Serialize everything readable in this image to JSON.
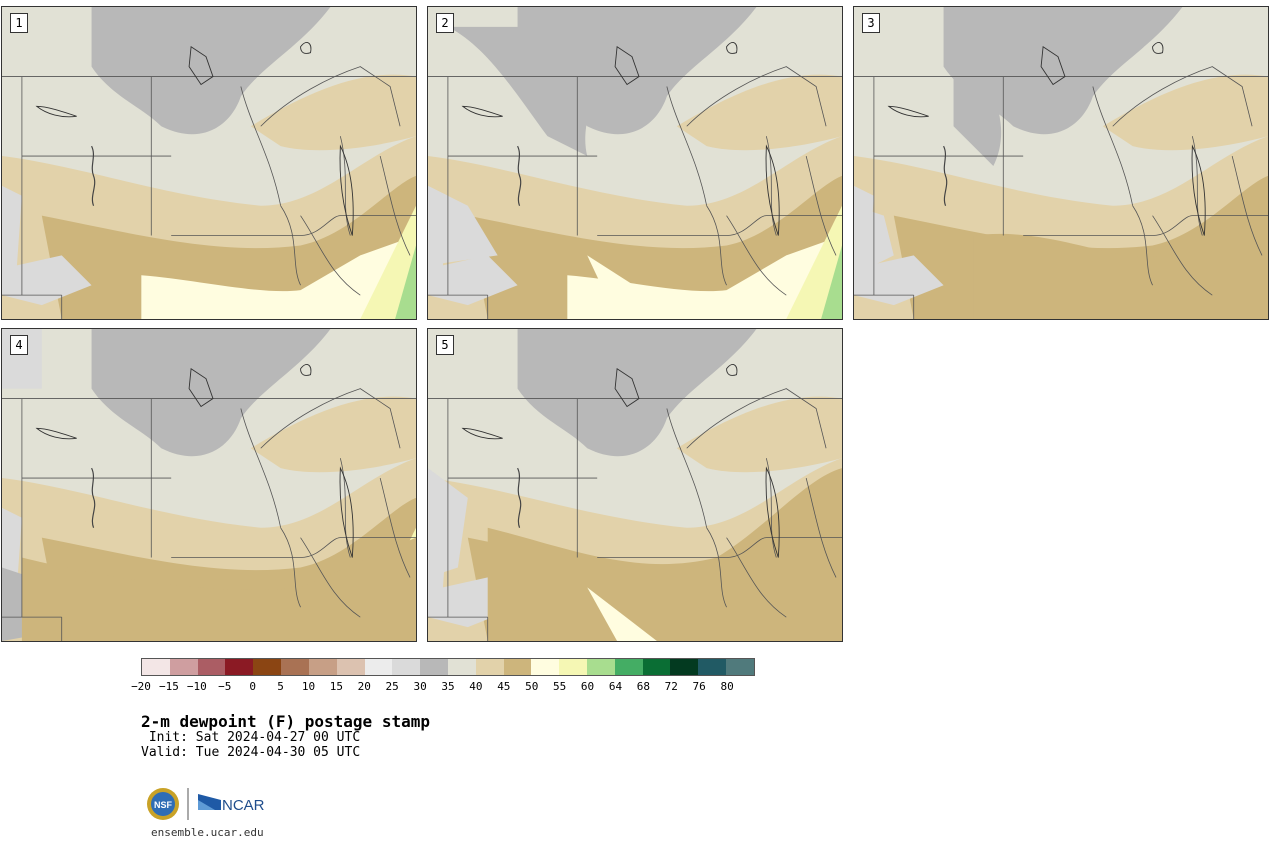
{
  "panels": [
    {
      "label": "1"
    },
    {
      "label": "2"
    },
    {
      "label": "3"
    },
    {
      "label": "4"
    },
    {
      "label": "5"
    }
  ],
  "colorbar": {
    "colors": [
      "#f3e6e6",
      "#cf9ea0",
      "#ab5d64",
      "#8b1a24",
      "#8b4513",
      "#a97254",
      "#c79f86",
      "#dcc2b0",
      "#ececec",
      "#dadada",
      "#b8b8b8",
      "#e1e1d5",
      "#e2d2aa",
      "#cdb57c",
      "#fffde0",
      "#f5f7b4",
      "#a8dd8f",
      "#44ad64",
      "#0a6e34",
      "#033a20",
      "#215a64",
      "#507a7c"
    ],
    "ticks": [
      "−20",
      "−15",
      "−10",
      "−5",
      "0",
      "5",
      "10",
      "15",
      "20",
      "25",
      "30",
      "35",
      "40",
      "45",
      "50",
      "55",
      "60",
      "64",
      "68",
      "72",
      "76",
      "80"
    ]
  },
  "title": "2-m dewpoint (F) postage stamp",
  "init": " Init: Sat 2024-04-27 00 UTC",
  "valid": "Valid: Tue 2024-04-30 05 UTC",
  "logo": {
    "nsf": "NSF",
    "ncar": "NCAR"
  },
  "url": "ensemble.ucar.edu"
}
